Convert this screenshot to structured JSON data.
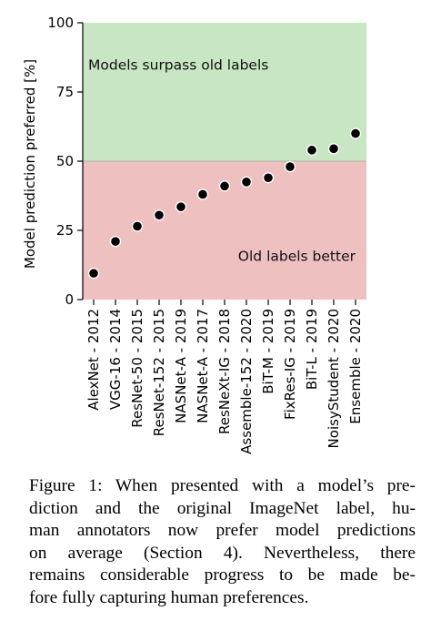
{
  "chart_data": {
    "type": "scatter",
    "categories": [
      "AlexNet - 2012",
      "VGG-16 - 2014",
      "ResNet-50 - 2015",
      "ResNet-152 - 2015",
      "NASNet-A - 2019",
      "NASNet-A - 2017",
      "ResNeXt-IG - 2018",
      "Assemble-152 - 2020",
      "BiT-M - 2019",
      "FixRes-IG - 2019",
      "BiT-L - 2019",
      "NoisyStudent - 2020",
      "Ensemble - 2020"
    ],
    "values": [
      9.5,
      21,
      26.5,
      30.5,
      33.5,
      38,
      41,
      42.5,
      44,
      48,
      54,
      54.5,
      60
    ],
    "ylabel": "Model prediction preferred [%]",
    "xlabel": "",
    "ylim": [
      0,
      100
    ],
    "yticks": [
      0,
      25,
      50,
      75,
      100
    ],
    "threshold": 50,
    "regions": {
      "upper": {
        "label": "Models surpass old labels",
        "color": "#c8e6c3"
      },
      "lower": {
        "label": "Old labels better",
        "color": "#eec0c0"
      }
    },
    "marker_color": "#000000",
    "grid": false
  },
  "caption": "Figure 1: When presented with a model’s pre-diction and the original ImageNet label, hu-man annotators now prefer model predictions on average (Section 4). Nevertheless, there remains considerable progress to be made be-fore fully capturing human preferences.",
  "caption_lines": [
    "Figure 1: When presented with a model’s pre-",
    "diction and the original ImageNet label, hu-",
    "man annotators now prefer model predictions",
    "on average (Section 4). Nevertheless, there",
    "remains considerable progress to be made be-",
    "fore fully capturing human preferences."
  ]
}
